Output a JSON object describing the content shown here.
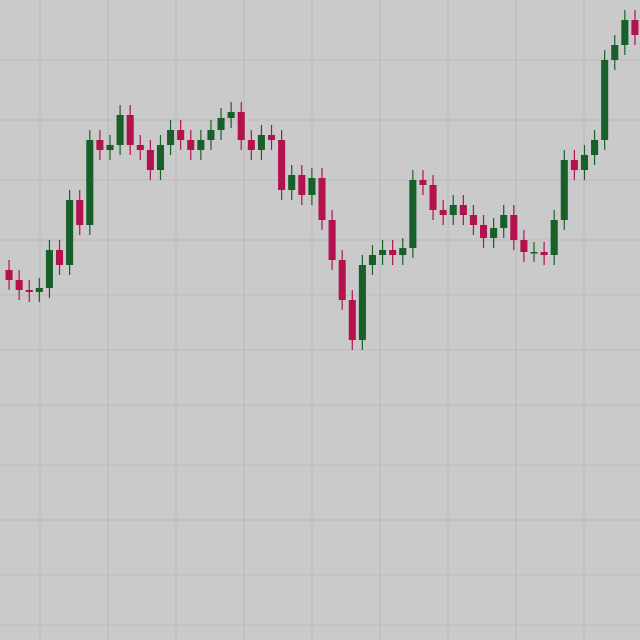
{
  "chart_data": {
    "type": "candlestick",
    "open": [
      370,
      360,
      350,
      348,
      352,
      390,
      375,
      440,
      415,
      500,
      490,
      495,
      525,
      495,
      490,
      470,
      495,
      510,
      500,
      490,
      500,
      510,
      522,
      528,
      500,
      490,
      505,
      500,
      450,
      465,
      445,
      462,
      420,
      380,
      340,
      300,
      375,
      385,
      390,
      385,
      392,
      460,
      455,
      430,
      425,
      435,
      425,
      415,
      402,
      412,
      425,
      400,
      388,
      388,
      385,
      420,
      480,
      470,
      485,
      500,
      580,
      595,
      620
    ],
    "high": [
      380,
      370,
      360,
      362,
      400,
      400,
      450,
      450,
      510,
      510,
      505,
      535,
      535,
      505,
      500,
      505,
      520,
      520,
      510,
      510,
      520,
      532,
      538,
      538,
      510,
      515,
      515,
      510,
      475,
      475,
      472,
      472,
      430,
      390,
      350,
      385,
      395,
      400,
      400,
      402,
      470,
      470,
      465,
      440,
      445,
      445,
      435,
      425,
      422,
      435,
      435,
      410,
      398,
      398,
      430,
      490,
      490,
      495,
      510,
      590,
      605,
      630,
      630
    ],
    "low": [
      350,
      340,
      338,
      338,
      342,
      365,
      365,
      405,
      405,
      480,
      480,
      485,
      485,
      480,
      460,
      460,
      485,
      490,
      480,
      480,
      490,
      500,
      512,
      490,
      480,
      480,
      490,
      440,
      440,
      435,
      435,
      410,
      370,
      330,
      290,
      290,
      365,
      375,
      375,
      375,
      382,
      445,
      420,
      415,
      415,
      415,
      405,
      392,
      392,
      402,
      390,
      378,
      378,
      375,
      375,
      410,
      460,
      460,
      475,
      490,
      570,
      585,
      595
    ],
    "close": [
      360,
      350,
      348,
      352,
      390,
      375,
      440,
      415,
      500,
      490,
      495,
      525,
      495,
      490,
      470,
      495,
      510,
      500,
      490,
      500,
      510,
      522,
      528,
      500,
      490,
      505,
      500,
      450,
      465,
      445,
      462,
      420,
      380,
      340,
      300,
      375,
      385,
      390,
      385,
      392,
      460,
      455,
      430,
      425,
      435,
      425,
      415,
      402,
      412,
      425,
      400,
      388,
      388,
      385,
      420,
      480,
      470,
      485,
      500,
      580,
      595,
      620,
      605
    ],
    "up_color": "#17602a",
    "down_color": "#b3124e",
    "ylim": [
      0,
      640
    ],
    "yticks": [
      15,
      65,
      120,
      175,
      235,
      290,
      345,
      400,
      460,
      520,
      580
    ],
    "grid": true
  }
}
